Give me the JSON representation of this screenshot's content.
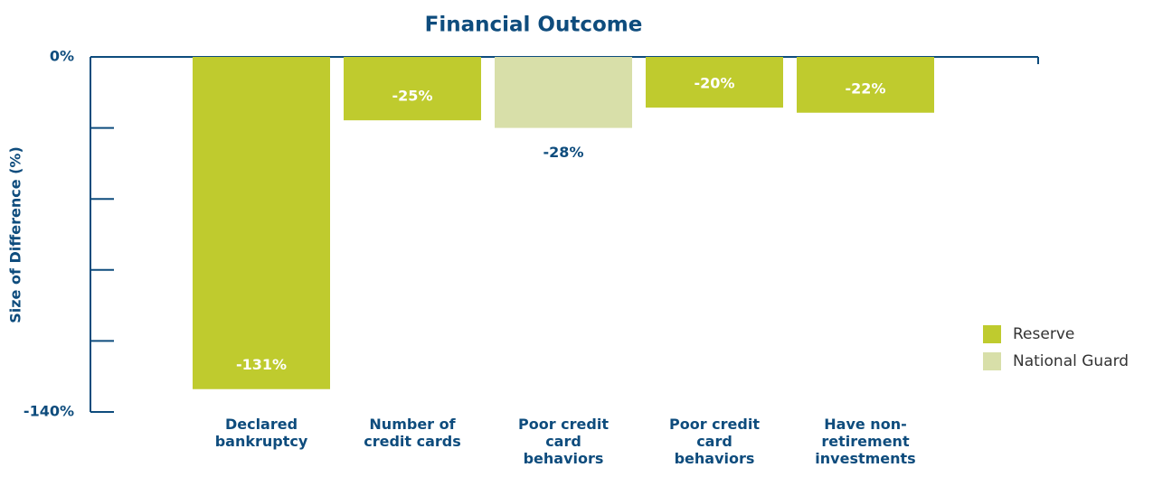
{
  "chart_data": {
    "type": "bar",
    "title": "Financial Outcome",
    "y_label": "Size of Difference (%)",
    "categories": [
      "Declared bankruptcy",
      "Number of credit cards",
      "Poor credit card behaviors",
      "Poor credit card behaviors",
      "Have non-retirement investments"
    ],
    "series": [
      {
        "name": "Reserve",
        "color": "#bfcb2e",
        "values": [
          -131,
          -25,
          null,
          -20,
          -22
        ],
        "value_labels": [
          "-131%",
          "-25%",
          null,
          "-20%",
          "-22%"
        ]
      },
      {
        "name": "National Guard",
        "color": "#d8dfa9",
        "values": [
          null,
          null,
          -28,
          null,
          null
        ],
        "value_labels": [
          null,
          null,
          "-28%",
          null,
          null
        ]
      }
    ],
    "ylim": [
      -140,
      0
    ],
    "yticks": [
      {
        "value": 0,
        "label": "0%"
      },
      {
        "value": -140,
        "label": "-140%"
      }
    ],
    "yminor_ticks": [
      -28,
      -56,
      -84,
      -112
    ],
    "legend": "right"
  }
}
